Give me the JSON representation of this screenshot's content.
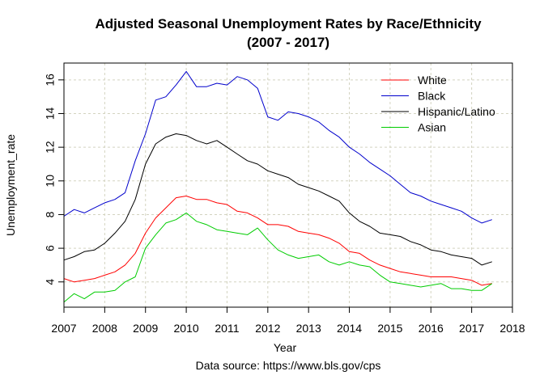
{
  "chart_data": {
    "type": "line",
    "title": "Adjusted Seasonal Unemployment Rates by Race/Ethnicity",
    "subtitle": "(2007 - 2017)",
    "xlabel": "Year",
    "ylabel": "Unemployment_rate",
    "caption": "Data source: https://www.bls.gov/cps",
    "xlim": [
      2007,
      2018
    ],
    "ylim": [
      2.5,
      17
    ],
    "x_ticks": [
      2007,
      2008,
      2009,
      2010,
      2011,
      2012,
      2013,
      2014,
      2015,
      2016,
      2017,
      2018
    ],
    "y_ticks": [
      4,
      6,
      8,
      10,
      12,
      14,
      16
    ],
    "grid": true,
    "legend_position": "top-right",
    "series": [
      {
        "name": "White",
        "color": "#ff0000",
        "x": [
          2007.0,
          2007.25,
          2007.5,
          2007.75,
          2008.0,
          2008.25,
          2008.5,
          2008.75,
          2009.0,
          2009.25,
          2009.5,
          2009.75,
          2010.0,
          2010.25,
          2010.5,
          2010.75,
          2011.0,
          2011.25,
          2011.5,
          2011.75,
          2012.0,
          2012.25,
          2012.5,
          2012.75,
          2013.0,
          2013.25,
          2013.5,
          2013.75,
          2014.0,
          2014.25,
          2014.5,
          2014.75,
          2015.0,
          2015.25,
          2015.5,
          2015.75,
          2016.0,
          2016.25,
          2016.5,
          2016.75,
          2017.0,
          2017.25,
          2017.5
        ],
        "y": [
          4.2,
          4.0,
          4.1,
          4.2,
          4.4,
          4.6,
          5.0,
          5.7,
          6.9,
          7.8,
          8.4,
          9.0,
          9.1,
          8.9,
          8.9,
          8.7,
          8.6,
          8.2,
          8.1,
          7.8,
          7.4,
          7.4,
          7.3,
          7.0,
          6.9,
          6.8,
          6.6,
          6.3,
          5.8,
          5.7,
          5.3,
          5.0,
          4.8,
          4.6,
          4.5,
          4.4,
          4.3,
          4.3,
          4.3,
          4.2,
          4.1,
          3.8,
          3.9
        ]
      },
      {
        "name": "Black",
        "color": "#0000cc",
        "x": [
          2007.0,
          2007.25,
          2007.5,
          2007.75,
          2008.0,
          2008.25,
          2008.5,
          2008.75,
          2009.0,
          2009.25,
          2009.5,
          2009.75,
          2010.0,
          2010.25,
          2010.5,
          2010.75,
          2011.0,
          2011.25,
          2011.5,
          2011.75,
          2012.0,
          2012.25,
          2012.5,
          2012.75,
          2013.0,
          2013.25,
          2013.5,
          2013.75,
          2014.0,
          2014.25,
          2014.5,
          2014.75,
          2015.0,
          2015.25,
          2015.5,
          2015.75,
          2016.0,
          2016.25,
          2016.5,
          2016.75,
          2017.0,
          2017.25,
          2017.5
        ],
        "y": [
          7.9,
          8.3,
          8.1,
          8.4,
          8.7,
          8.9,
          9.3,
          11.2,
          12.8,
          14.8,
          15.0,
          15.7,
          16.5,
          15.6,
          15.6,
          15.8,
          15.7,
          16.2,
          16.0,
          15.5,
          13.8,
          13.6,
          14.1,
          14.0,
          13.8,
          13.5,
          13.0,
          12.6,
          12.0,
          11.6,
          11.1,
          10.7,
          10.3,
          9.8,
          9.3,
          9.1,
          8.8,
          8.6,
          8.4,
          8.2,
          7.8,
          7.5,
          7.7
        ]
      },
      {
        "name": "Hispanic/Latino",
        "color": "#000000",
        "x": [
          2007.0,
          2007.25,
          2007.5,
          2007.75,
          2008.0,
          2008.25,
          2008.5,
          2008.75,
          2009.0,
          2009.25,
          2009.5,
          2009.75,
          2010.0,
          2010.25,
          2010.5,
          2010.75,
          2011.0,
          2011.25,
          2011.5,
          2011.75,
          2012.0,
          2012.25,
          2012.5,
          2012.75,
          2013.0,
          2013.25,
          2013.5,
          2013.75,
          2014.0,
          2014.25,
          2014.5,
          2014.75,
          2015.0,
          2015.25,
          2015.5,
          2015.75,
          2016.0,
          2016.25,
          2016.5,
          2016.75,
          2017.0,
          2017.25,
          2017.5
        ],
        "y": [
          5.3,
          5.5,
          5.8,
          5.9,
          6.3,
          6.9,
          7.6,
          8.9,
          11.0,
          12.2,
          12.6,
          12.8,
          12.7,
          12.4,
          12.2,
          12.4,
          12.0,
          11.6,
          11.2,
          11.0,
          10.6,
          10.4,
          10.2,
          9.8,
          9.6,
          9.4,
          9.1,
          8.8,
          8.1,
          7.6,
          7.3,
          6.9,
          6.8,
          6.7,
          6.4,
          6.2,
          5.9,
          5.8,
          5.6,
          5.5,
          5.4,
          5.0,
          5.2
        ]
      },
      {
        "name": "Asian",
        "color": "#00cc00",
        "x": [
          2007.0,
          2007.25,
          2007.5,
          2007.75,
          2008.0,
          2008.25,
          2008.5,
          2008.75,
          2009.0,
          2009.25,
          2009.5,
          2009.75,
          2010.0,
          2010.25,
          2010.5,
          2010.75,
          2011.0,
          2011.25,
          2011.5,
          2011.75,
          2012.0,
          2012.25,
          2012.5,
          2012.75,
          2013.0,
          2013.25,
          2013.5,
          2013.75,
          2014.0,
          2014.25,
          2014.5,
          2014.75,
          2015.0,
          2015.25,
          2015.5,
          2015.75,
          2016.0,
          2016.25,
          2016.5,
          2016.75,
          2017.0,
          2017.25,
          2017.5
        ],
        "y": [
          2.8,
          3.3,
          3.0,
          3.4,
          3.4,
          3.5,
          4.0,
          4.3,
          6.0,
          6.8,
          7.5,
          7.7,
          8.1,
          7.6,
          7.4,
          7.1,
          7.0,
          6.9,
          6.8,
          7.2,
          6.5,
          5.9,
          5.6,
          5.4,
          5.5,
          5.6,
          5.2,
          5.0,
          5.2,
          5.0,
          4.9,
          4.4,
          4.0,
          3.9,
          3.8,
          3.7,
          3.8,
          3.9,
          3.6,
          3.6,
          3.5,
          3.5,
          3.9
        ]
      }
    ]
  }
}
